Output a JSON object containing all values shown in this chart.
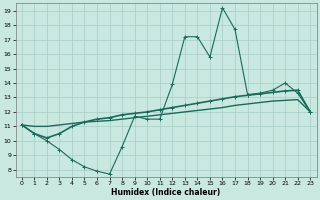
{
  "xlabel": "Humidex (Indice chaleur)",
  "x_ticks": [
    0,
    1,
    2,
    3,
    4,
    5,
    6,
    7,
    8,
    9,
    10,
    11,
    12,
    13,
    14,
    15,
    16,
    17,
    18,
    19,
    20,
    21,
    22,
    23
  ],
  "y_ticks": [
    8,
    9,
    10,
    11,
    12,
    13,
    14,
    15,
    16,
    17,
    18,
    19
  ],
  "xlim": [
    -0.5,
    23.5
  ],
  "ylim": [
    7.5,
    19.5
  ],
  "bg_color": "#c8e8e0",
  "grid_color": "#a8ccc4",
  "line_color": "#1a6b5a",
  "line1_x": [
    0,
    1,
    2,
    3,
    4,
    5,
    6,
    7,
    8,
    9,
    10,
    11,
    12,
    13,
    14,
    15,
    16,
    17,
    18,
    19,
    20,
    21,
    22,
    23
  ],
  "line1_y": [
    11.1,
    10.5,
    10.0,
    9.4,
    8.7,
    8.2,
    7.9,
    7.7,
    9.6,
    11.7,
    11.5,
    11.5,
    13.9,
    17.2,
    17.2,
    15.8,
    19.2,
    17.7,
    13.2,
    13.3,
    13.5,
    14.0,
    13.3,
    12.0
  ],
  "line2_x": [
    0,
    1,
    2,
    3,
    4,
    5,
    6,
    7,
    8,
    9,
    10,
    11,
    12,
    13,
    14,
    15,
    16,
    17,
    18,
    19,
    20,
    21,
    22,
    23
  ],
  "line2_y": [
    11.1,
    11.0,
    11.0,
    11.1,
    11.2,
    11.3,
    11.35,
    11.4,
    11.5,
    11.6,
    11.7,
    11.8,
    11.9,
    12.0,
    12.1,
    12.2,
    12.3,
    12.45,
    12.55,
    12.65,
    12.75,
    12.8,
    12.85,
    12.0
  ],
  "line3_x": [
    0,
    1,
    2,
    3,
    4,
    5,
    6,
    7,
    8,
    9,
    10,
    11,
    12,
    13,
    14,
    15,
    16,
    17,
    18,
    19,
    20,
    21,
    22,
    23
  ],
  "line3_y": [
    11.1,
    10.5,
    10.2,
    10.5,
    11.0,
    11.3,
    11.5,
    11.6,
    11.8,
    11.9,
    12.0,
    12.15,
    12.3,
    12.45,
    12.6,
    12.75,
    12.9,
    13.05,
    13.15,
    13.25,
    13.35,
    13.45,
    13.5,
    12.0
  ]
}
